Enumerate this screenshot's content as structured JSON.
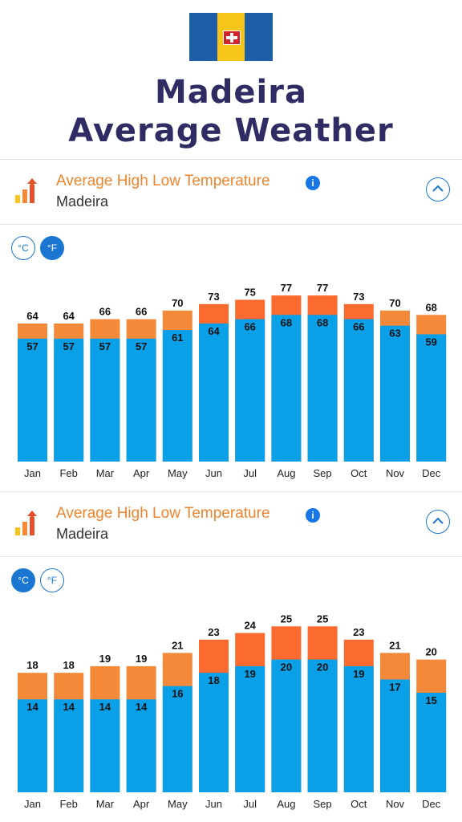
{
  "page": {
    "title_line1": "Madeira",
    "title_line2": "Average Weather"
  },
  "panels": [
    {
      "title": "Average High Low Temperature",
      "subtitle": "Madeira",
      "info_label": "i",
      "units": {
        "celsius": "°C",
        "fahrenheit": "°F",
        "active": "fahrenheit"
      }
    },
    {
      "title": "Average High Low Temperature",
      "subtitle": "Madeira",
      "info_label": "i",
      "units": {
        "celsius": "°C",
        "fahrenheit": "°F",
        "active": "celsius"
      }
    }
  ],
  "colors": {
    "high_light": "#f5893a",
    "high_dark": "#fb6a2e",
    "low": "#0aa0e8"
  },
  "chart_data": [
    {
      "type": "bar",
      "categories": [
        "Jan",
        "Feb",
        "Mar",
        "Apr",
        "May",
        "Jun",
        "Jul",
        "Aug",
        "Sep",
        "Oct",
        "Nov",
        "Dec"
      ],
      "series": [
        {
          "values": [
            64,
            64,
            66,
            66,
            70,
            73,
            75,
            77,
            77,
            73,
            70,
            68
          ]
        },
        {
          "values": [
            57,
            57,
            57,
            57,
            61,
            64,
            66,
            68,
            68,
            66,
            63,
            59
          ]
        }
      ],
      "ylim": [
        0,
        80
      ]
    },
    {
      "type": "bar",
      "categories": [
        "Jan",
        "Feb",
        "Mar",
        "Apr",
        "May",
        "Jun",
        "Jul",
        "Aug",
        "Sep",
        "Oct",
        "Nov",
        "Dec"
      ],
      "series": [
        {
          "values": [
            18,
            18,
            19,
            19,
            21,
            23,
            24,
            25,
            25,
            23,
            21,
            20
          ]
        },
        {
          "values": [
            14,
            14,
            14,
            14,
            16,
            18,
            19,
            20,
            20,
            19,
            17,
            15
          ]
        }
      ],
      "ylim": [
        0,
        26
      ]
    }
  ]
}
